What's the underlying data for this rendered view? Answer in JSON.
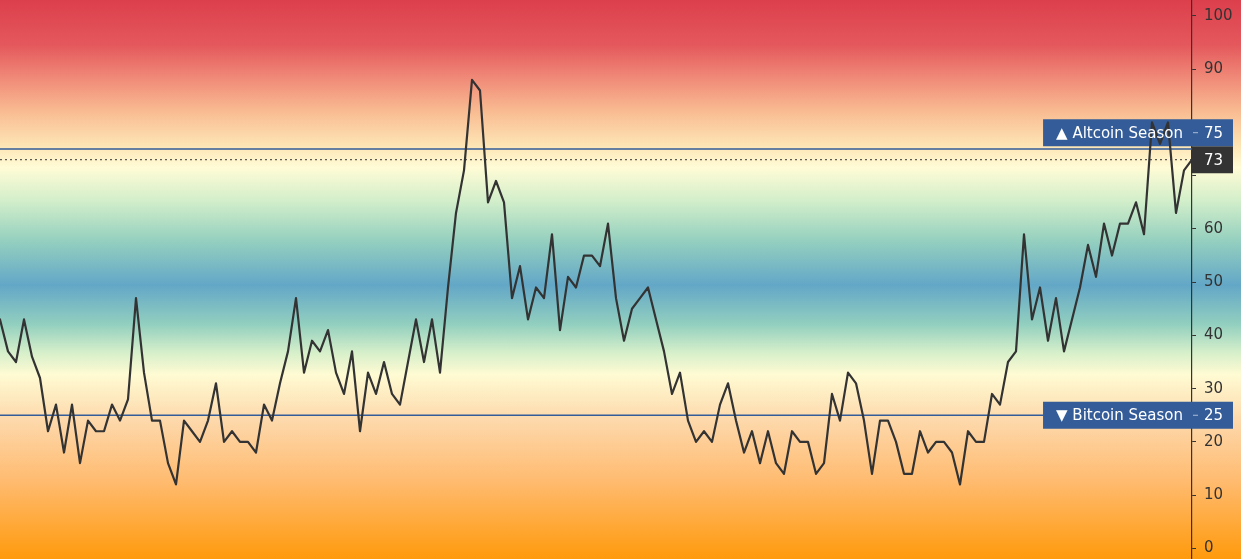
{
  "chart_data": {
    "type": "line",
    "categories": [
      null,
      null,
      null,
      null,
      null,
      null,
      null,
      null,
      null,
      null,
      null,
      null,
      null,
      null,
      null,
      null,
      null,
      null,
      null,
      null,
      null,
      null,
      null,
      null,
      null,
      null,
      null,
      null,
      null,
      null,
      null,
      null,
      null,
      null,
      null,
      null,
      null,
      null,
      null,
      null,
      null,
      null,
      null,
      null,
      null,
      null,
      null,
      null,
      null,
      null,
      null,
      null,
      null,
      null,
      null,
      null,
      null,
      null,
      null,
      null,
      null,
      null,
      null,
      null,
      null,
      null,
      null,
      null,
      null,
      null,
      null,
      null,
      null,
      null,
      null,
      null,
      null,
      null,
      null,
      null,
      null,
      null,
      null,
      null,
      null,
      null,
      null,
      null,
      null,
      null,
      null,
      null,
      null,
      null,
      null,
      null,
      null,
      null,
      null,
      null,
      null,
      null,
      null,
      null,
      null,
      null,
      null,
      null,
      null,
      null,
      null,
      null,
      null,
      null,
      null,
      null,
      null,
      null,
      null,
      null,
      null,
      null,
      null,
      null,
      null,
      null,
      null,
      null,
      null,
      null,
      null,
      null,
      null,
      null,
      null,
      null,
      null,
      null,
      null,
      null,
      null,
      null,
      null,
      null,
      null,
      null,
      null,
      null,
      null,
      null
    ],
    "series": [
      {
        "color": "#333333",
        "values": [
          43,
          37,
          35,
          43,
          36,
          32,
          22,
          27,
          18,
          27,
          16,
          24,
          22,
          22,
          27,
          24,
          28,
          47,
          33,
          24,
          24,
          16,
          12,
          24,
          22,
          20,
          24,
          31,
          20,
          22,
          20,
          20,
          18,
          27,
          24,
          31,
          37,
          47,
          33,
          39,
          37,
          41,
          33,
          29,
          37,
          22,
          33,
          29,
          35,
          29,
          27,
          35,
          43,
          35,
          43,
          33,
          49,
          63,
          71,
          88,
          86,
          65,
          69,
          65,
          47,
          53,
          43,
          49,
          47,
          59,
          41,
          51,
          49,
          55,
          55,
          53,
          61,
          47,
          39,
          45,
          47,
          49,
          43,
          37,
          29,
          33,
          24,
          20,
          22,
          20,
          27,
          31,
          24,
          18,
          22,
          16,
          22,
          16,
          14,
          22,
          20,
          20,
          14,
          16,
          29,
          24,
          33,
          31,
          24,
          14,
          24,
          24,
          20,
          14,
          14,
          22,
          18,
          20,
          20,
          18,
          12,
          22,
          20,
          20,
          29,
          27,
          35,
          37,
          59,
          43,
          49,
          39,
          47,
          37,
          43,
          49,
          57,
          51,
          61,
          55,
          61,
          61,
          65,
          59,
          80,
          76,
          80,
          63,
          71,
          73
        ]
      }
    ],
    "ylim": [
      -2,
      103
    ],
    "yticks": [
      0,
      10,
      20,
      30,
      40,
      50,
      60,
      {
        "value": 70,
        "label": null
      },
      90,
      100
    ],
    "ref_lines": [
      {
        "axis": "y",
        "value": 73,
        "label": "73",
        "color": "#333333",
        "line_style": "dotted"
      },
      {
        "axis": "y",
        "value": 75,
        "label": "▲ Altcoin Season",
        "color": "#335c99"
      },
      {
        "axis": "y",
        "value": 25,
        "label": "▼ Bitcoin Season",
        "color": "#335c99"
      }
    ],
    "annotations": [
      "75",
      "25"
    ],
    "tick_labels": "y",
    "marker": "none"
  }
}
